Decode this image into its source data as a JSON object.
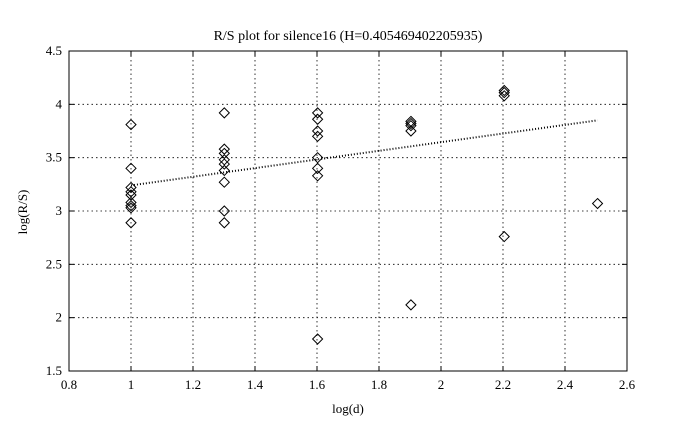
{
  "chart_data": {
    "type": "scatter",
    "title": "R/S plot for silence16 (H=0.405469402205935)",
    "xlabel": "log(d)",
    "ylabel": "log(R/S)",
    "xlim": [
      0.8,
      2.6
    ],
    "ylim": [
      1.5,
      4.5
    ],
    "xticks": [
      0.8,
      1,
      1.2,
      1.4,
      1.6,
      1.8,
      2,
      2.2,
      2.4,
      2.6
    ],
    "xtick_labels": [
      "0.8",
      "1",
      "1.2",
      "1.4",
      "1.6",
      "1.8",
      "2",
      "2.2",
      "2.4",
      "2.6"
    ],
    "yticks": [
      1.5,
      2,
      2.5,
      3,
      3.5,
      4,
      4.5
    ],
    "ytick_labels": [
      "1.5",
      "2",
      "2.5",
      "3",
      "3.5",
      "4",
      "4.5"
    ],
    "grid": true,
    "grid_style": "dotted",
    "marker": "diamond",
    "series": [
      {
        "marker": "diamond",
        "points": [
          {
            "x": 1.0,
            "y": 3.81
          },
          {
            "x": 1.0,
            "y": 3.4
          },
          {
            "x": 1.0,
            "y": 3.22
          },
          {
            "x": 1.0,
            "y": 3.18
          },
          {
            "x": 1.0,
            "y": 3.15
          },
          {
            "x": 1.0,
            "y": 3.08
          },
          {
            "x": 1.0,
            "y": 3.05
          },
          {
            "x": 1.0,
            "y": 3.03
          },
          {
            "x": 1.0,
            "y": 2.89
          },
          {
            "x": 1.301,
            "y": 3.92
          },
          {
            "x": 1.301,
            "y": 3.58
          },
          {
            "x": 1.301,
            "y": 3.54
          },
          {
            "x": 1.301,
            "y": 3.48
          },
          {
            "x": 1.301,
            "y": 3.44
          },
          {
            "x": 1.301,
            "y": 3.38
          },
          {
            "x": 1.301,
            "y": 3.27
          },
          {
            "x": 1.301,
            "y": 3.0
          },
          {
            "x": 1.301,
            "y": 2.89
          },
          {
            "x": 1.602,
            "y": 3.92
          },
          {
            "x": 1.602,
            "y": 3.86
          },
          {
            "x": 1.602,
            "y": 3.75
          },
          {
            "x": 1.602,
            "y": 3.7
          },
          {
            "x": 1.602,
            "y": 3.5
          },
          {
            "x": 1.602,
            "y": 3.4
          },
          {
            "x": 1.602,
            "y": 3.33
          },
          {
            "x": 1.602,
            "y": 1.8
          },
          {
            "x": 1.903,
            "y": 3.84
          },
          {
            "x": 1.903,
            "y": 3.82
          },
          {
            "x": 1.903,
            "y": 3.8
          },
          {
            "x": 1.903,
            "y": 3.75
          },
          {
            "x": 1.903,
            "y": 2.12
          },
          {
            "x": 2.204,
            "y": 4.13
          },
          {
            "x": 2.204,
            "y": 4.11
          },
          {
            "x": 2.204,
            "y": 4.08
          },
          {
            "x": 2.204,
            "y": 2.76
          },
          {
            "x": 2.505,
            "y": 3.07
          }
        ]
      },
      {
        "type": "line",
        "style": "dotted",
        "x": [
          1.0,
          2.505
        ],
        "y": [
          3.24,
          3.85
        ]
      }
    ]
  }
}
